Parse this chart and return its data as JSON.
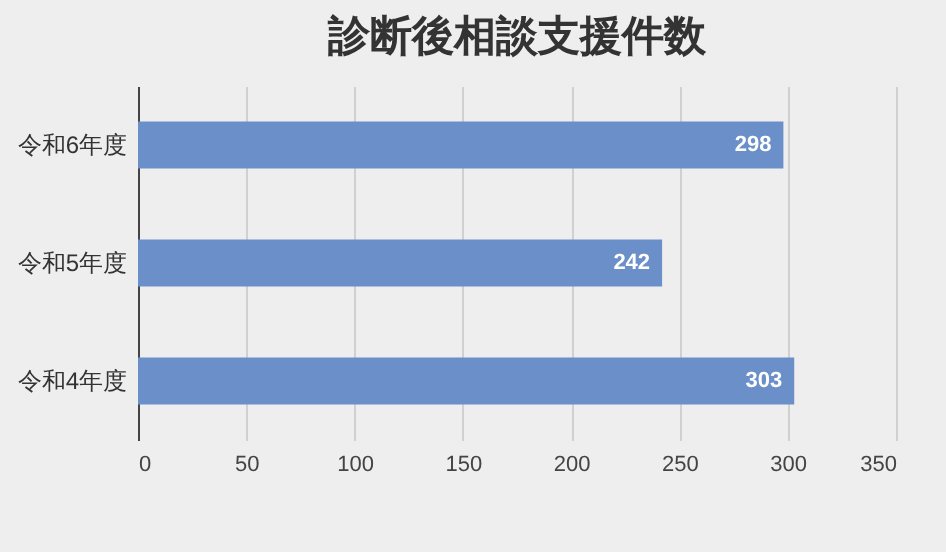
{
  "chart_data": {
    "type": "bar",
    "orientation": "horizontal",
    "title": "診断後相談支援件数",
    "categories": [
      "令和6年度",
      "令和5年度",
      "令和4年度"
    ],
    "values": [
      298,
      242,
      303
    ],
    "color": "#6a8fc9",
    "xlim": [
      0,
      350
    ],
    "xticks": [
      0,
      50,
      100,
      150,
      200,
      250,
      300,
      350
    ],
    "grid": "x",
    "data_labels": true
  }
}
